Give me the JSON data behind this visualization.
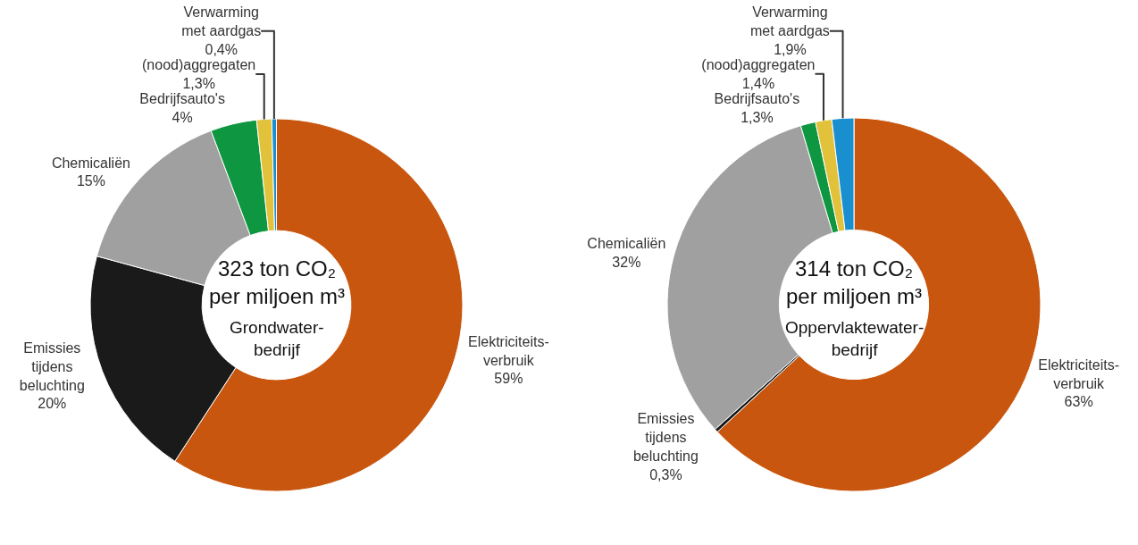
{
  "chart_data": [
    {
      "type": "donut",
      "annotations": [
        "323 ton CO₂\nper miljoen m³",
        "Grondwater-\nbedrijf"
      ],
      "categories": [
        "Elektriciteits-\nverbruik",
        "Emissies\ntijdens\nbeluchting",
        "Chemicaliën",
        "Bedrijfsauto's",
        "(nood)aggregaten",
        "Verwarming\nmet aardgas"
      ],
      "values": [
        59,
        20,
        15,
        4,
        1.3,
        0.4
      ],
      "value_labels": [
        "59%",
        "20%",
        "15%",
        "4%",
        "1,3%",
        "0,4%"
      ],
      "colors": [
        "#c9560e",
        "#1a1a1a",
        "#a0a0a0",
        "#0e9640",
        "#e2c23a",
        "#1a8fd0"
      ],
      "legend": false
    },
    {
      "type": "donut",
      "annotations": [
        "314 ton CO₂\nper miljoen m³",
        "Oppervlaktewater-\nbedrijf"
      ],
      "categories": [
        "Elektriciteits-\nverbruik",
        "Emissies\ntijdens\nbeluchting",
        "Chemicaliën",
        "Bedrijfsauto's",
        "(nood)aggregaten",
        "Verwarming\nmet aardgas"
      ],
      "values": [
        63,
        0.3,
        32,
        1.3,
        1.4,
        1.9
      ],
      "value_labels": [
        "63%",
        "0,3%",
        "32%",
        "1,3%",
        "1,4%",
        "1,9%"
      ],
      "colors": [
        "#c9560e",
        "#1a1a1a",
        "#a0a0a0",
        "#0e9640",
        "#e2c23a",
        "#1a8fd0"
      ],
      "legend": false
    }
  ]
}
